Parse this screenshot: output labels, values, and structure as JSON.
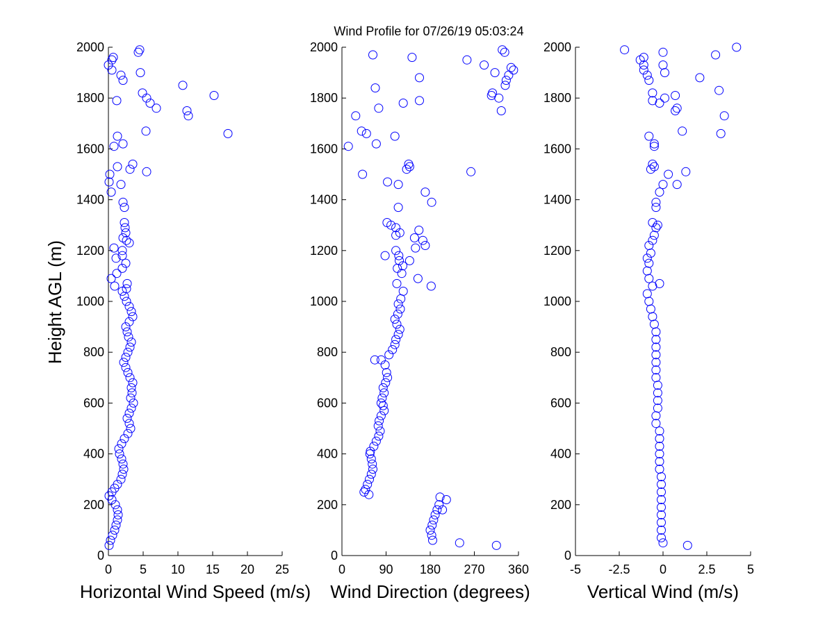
{
  "figure_title": "Wind Profile for  07/26/19 05:03:24",
  "chart_data": [
    {
      "type": "scatter",
      "xlabel": "Horizontal Wind Speed (m/s)",
      "ylabel": "Height AGL (m)",
      "xlim": [
        0,
        25
      ],
      "ylim": [
        0,
        2000
      ],
      "xticks": [
        "0",
        "5",
        "10",
        "15",
        "20",
        "25"
      ],
      "yticks": [
        "0",
        "200",
        "400",
        "600",
        "800",
        "1000",
        "1200",
        "1400",
        "1600",
        "1800",
        "2000"
      ],
      "marker": "open-circle",
      "color": "#0000ff",
      "points": [
        [
          0.1,
          40
        ],
        [
          0.3,
          60
        ],
        [
          0.6,
          80
        ],
        [
          0.9,
          100
        ],
        [
          1.1,
          120
        ],
        [
          1.3,
          140
        ],
        [
          1.4,
          160
        ],
        [
          1.3,
          180
        ],
        [
          1.0,
          200
        ],
        [
          0.5,
          220
        ],
        [
          0.1,
          235
        ],
        [
          0.5,
          250
        ],
        [
          0.9,
          265
        ],
        [
          1.3,
          280
        ],
        [
          1.8,
          300
        ],
        [
          2.0,
          320
        ],
        [
          2.2,
          340
        ],
        [
          2.1,
          360
        ],
        [
          1.9,
          380
        ],
        [
          1.6,
          400
        ],
        [
          1.5,
          420
        ],
        [
          1.9,
          440
        ],
        [
          2.3,
          460
        ],
        [
          2.8,
          480
        ],
        [
          3.2,
          500
        ],
        [
          3.0,
          520
        ],
        [
          2.7,
          540
        ],
        [
          3.0,
          560
        ],
        [
          3.3,
          580
        ],
        [
          3.6,
          600
        ],
        [
          3.2,
          620
        ],
        [
          3.4,
          640
        ],
        [
          3.3,
          660
        ],
        [
          3.5,
          680
        ],
        [
          3.1,
          700
        ],
        [
          2.8,
          720
        ],
        [
          2.5,
          740
        ],
        [
          2.2,
          760
        ],
        [
          2.5,
          780
        ],
        [
          2.8,
          800
        ],
        [
          3.1,
          820
        ],
        [
          3.3,
          840
        ],
        [
          2.9,
          860
        ],
        [
          2.7,
          880
        ],
        [
          2.5,
          900
        ],
        [
          3.0,
          920
        ],
        [
          3.5,
          940
        ],
        [
          3.3,
          960
        ],
        [
          3.0,
          980
        ],
        [
          2.6,
          1000
        ],
        [
          2.3,
          1020
        ],
        [
          2.0,
          1040
        ],
        [
          2.6,
          1050
        ],
        [
          2.7,
          1070
        ],
        [
          0.9,
          1060
        ],
        [
          0.4,
          1090
        ],
        [
          1.2,
          1110
        ],
        [
          2.0,
          1130
        ],
        [
          2.5,
          1150
        ],
        [
          1.1,
          1170
        ],
        [
          2.0,
          1180
        ],
        [
          0.8,
          1210
        ],
        [
          2.0,
          1200
        ],
        [
          2.1,
          1250
        ],
        [
          2.6,
          1240
        ],
        [
          3.0,
          1230
        ],
        [
          2.5,
          1270
        ],
        [
          2.4,
          1290
        ],
        [
          2.3,
          1310
        ],
        [
          2.3,
          1370
        ],
        [
          2.1,
          1390
        ],
        [
          0.4,
          1430
        ],
        [
          1.8,
          1460
        ],
        [
          0.1,
          1470
        ],
        [
          0.2,
          1500
        ],
        [
          5.5,
          1510
        ],
        [
          3.1,
          1520
        ],
        [
          1.3,
          1530
        ],
        [
          3.5,
          1540
        ],
        [
          0.8,
          1610
        ],
        [
          2.1,
          1620
        ],
        [
          1.3,
          1650
        ],
        [
          5.4,
          1670
        ],
        [
          17.2,
          1660
        ],
        [
          11.5,
          1730
        ],
        [
          11.3,
          1750
        ],
        [
          6.9,
          1760
        ],
        [
          6.0,
          1780
        ],
        [
          5.5,
          1800
        ],
        [
          15.2,
          1810
        ],
        [
          4.9,
          1820
        ],
        [
          10.7,
          1850
        ],
        [
          1.2,
          1790
        ],
        [
          2.1,
          1870
        ],
        [
          1.8,
          1890
        ],
        [
          4.6,
          1900
        ],
        [
          0.5,
          1910
        ],
        [
          0.0,
          1930
        ],
        [
          0.5,
          1950
        ],
        [
          0.7,
          1960
        ],
        [
          4.3,
          1980
        ],
        [
          4.5,
          1990
        ]
      ]
    },
    {
      "type": "scatter",
      "xlabel": "Wind Direction (degrees)",
      "xlim": [
        0,
        360
      ],
      "ylim": [
        0,
        2000
      ],
      "xticks": [
        "0",
        "90",
        "180",
        "270",
        "360"
      ],
      "yticks": [
        "0",
        "200",
        "400",
        "600",
        "800",
        "1000",
        "1200",
        "1400",
        "1600",
        "1800",
        "2000"
      ],
      "marker": "open-circle",
      "color": "#0000ff",
      "points": [
        [
          315,
          40
        ],
        [
          240,
          50
        ],
        [
          185,
          60
        ],
        [
          183,
          80
        ],
        [
          180,
          100
        ],
        [
          184,
          120
        ],
        [
          187,
          140
        ],
        [
          190,
          160
        ],
        [
          194,
          180
        ],
        [
          198,
          200
        ],
        [
          205,
          180
        ],
        [
          213,
          220
        ],
        [
          200,
          230
        ],
        [
          55,
          240
        ],
        [
          48,
          260
        ],
        [
          45,
          250
        ],
        [
          52,
          280
        ],
        [
          56,
          300
        ],
        [
          60,
          320
        ],
        [
          63,
          340
        ],
        [
          62,
          360
        ],
        [
          60,
          380
        ],
        [
          57,
          400
        ],
        [
          58,
          410
        ],
        [
          65,
          430
        ],
        [
          70,
          450
        ],
        [
          75,
          470
        ],
        [
          78,
          490
        ],
        [
          74,
          510
        ],
        [
          76,
          530
        ],
        [
          80,
          550
        ],
        [
          86,
          570
        ],
        [
          84,
          590
        ],
        [
          80,
          600
        ],
        [
          82,
          620
        ],
        [
          86,
          640
        ],
        [
          84,
          660
        ],
        [
          89,
          680
        ],
        [
          93,
          700
        ],
        [
          91,
          720
        ],
        [
          88,
          750
        ],
        [
          67,
          770
        ],
        [
          80,
          770
        ],
        [
          96,
          790
        ],
        [
          103,
          810
        ],
        [
          108,
          830
        ],
        [
          110,
          850
        ],
        [
          115,
          870
        ],
        [
          118,
          890
        ],
        [
          112,
          910
        ],
        [
          108,
          930
        ],
        [
          114,
          950
        ],
        [
          119,
          970
        ],
        [
          115,
          990
        ],
        [
          120,
          1010
        ],
        [
          125,
          1040
        ],
        [
          112,
          1070
        ],
        [
          182,
          1060
        ],
        [
          155,
          1090
        ],
        [
          122,
          1110
        ],
        [
          113,
          1130
        ],
        [
          124,
          1140
        ],
        [
          117,
          1160
        ],
        [
          138,
          1160
        ],
        [
          116,
          1180
        ],
        [
          88,
          1180
        ],
        [
          110,
          1200
        ],
        [
          150,
          1210
        ],
        [
          170,
          1220
        ],
        [
          165,
          1240
        ],
        [
          148,
          1250
        ],
        [
          110,
          1260
        ],
        [
          118,
          1270
        ],
        [
          157,
          1280
        ],
        [
          110,
          1290
        ],
        [
          100,
          1300
        ],
        [
          92,
          1310
        ],
        [
          115,
          1370
        ],
        [
          183,
          1390
        ],
        [
          170,
          1430
        ],
        [
          115,
          1460
        ],
        [
          93,
          1470
        ],
        [
          42,
          1500
        ],
        [
          263,
          1510
        ],
        [
          132,
          1520
        ],
        [
          138,
          1530
        ],
        [
          136,
          1540
        ],
        [
          13,
          1610
        ],
        [
          70,
          1620
        ],
        [
          108,
          1650
        ],
        [
          50,
          1660
        ],
        [
          40,
          1670
        ],
        [
          28,
          1730
        ],
        [
          325,
          1750
        ],
        [
          75,
          1760
        ],
        [
          125,
          1780
        ],
        [
          158,
          1790
        ],
        [
          305,
          1810
        ],
        [
          307,
          1820
        ],
        [
          320,
          1800
        ],
        [
          333,
          1850
        ],
        [
          335,
          1870
        ],
        [
          68,
          1840
        ],
        [
          158,
          1880
        ],
        [
          340,
          1890
        ],
        [
          312,
          1900
        ],
        [
          350,
          1910
        ],
        [
          345,
          1920
        ],
        [
          290,
          1930
        ],
        [
          255,
          1950
        ],
        [
          143,
          1960
        ],
        [
          63,
          1970
        ],
        [
          332,
          1980
        ],
        [
          327,
          1990
        ]
      ]
    },
    {
      "type": "scatter",
      "xlabel": "Vertical Wind (m/s)",
      "xlim": [
        -5,
        5
      ],
      "ylim": [
        0,
        2000
      ],
      "xticks": [
        "-5",
        "-2.5",
        "0",
        "2.5",
        "5"
      ],
      "yticks": [
        "0",
        "200",
        "400",
        "600",
        "800",
        "1000",
        "1200",
        "1400",
        "1600",
        "1800",
        "2000"
      ],
      "marker": "open-circle",
      "color": "#0000ff",
      "points": [
        [
          1.4,
          40
        ],
        [
          0.0,
          50
        ],
        [
          -0.1,
          70
        ],
        [
          -0.1,
          100
        ],
        [
          -0.1,
          130
        ],
        [
          -0.1,
          160
        ],
        [
          -0.1,
          190
        ],
        [
          -0.1,
          220
        ],
        [
          -0.1,
          250
        ],
        [
          -0.1,
          280
        ],
        [
          -0.1,
          310
        ],
        [
          -0.2,
          340
        ],
        [
          -0.2,
          370
        ],
        [
          -0.2,
          400
        ],
        [
          -0.2,
          430
        ],
        [
          -0.2,
          460
        ],
        [
          -0.2,
          490
        ],
        [
          -0.4,
          520
        ],
        [
          -0.4,
          550
        ],
        [
          -0.3,
          580
        ],
        [
          -0.3,
          610
        ],
        [
          -0.3,
          640
        ],
        [
          -0.3,
          670
        ],
        [
          -0.4,
          700
        ],
        [
          -0.4,
          730
        ],
        [
          -0.4,
          760
        ],
        [
          -0.4,
          790
        ],
        [
          -0.4,
          820
        ],
        [
          -0.4,
          850
        ],
        [
          -0.4,
          880
        ],
        [
          -0.5,
          910
        ],
        [
          -0.6,
          940
        ],
        [
          -0.7,
          970
        ],
        [
          -0.8,
          1000
        ],
        [
          -0.9,
          1030
        ],
        [
          -0.6,
          1060
        ],
        [
          -0.2,
          1070
        ],
        [
          -0.8,
          1090
        ],
        [
          -0.9,
          1120
        ],
        [
          -0.8,
          1150
        ],
        [
          -0.9,
          1170
        ],
        [
          -0.7,
          1190
        ],
        [
          -0.8,
          1220
        ],
        [
          -0.6,
          1240
        ],
        [
          -0.5,
          1260
        ],
        [
          -0.4,
          1290
        ],
        [
          -0.3,
          1300
        ],
        [
          -0.6,
          1310
        ],
        [
          -0.4,
          1370
        ],
        [
          -0.4,
          1390
        ],
        [
          -0.2,
          1430
        ],
        [
          0.0,
          1460
        ],
        [
          0.3,
          1500
        ],
        [
          0.8,
          1460
        ],
        [
          1.3,
          1510
        ],
        [
          -0.7,
          1520
        ],
        [
          -0.5,
          1530
        ],
        [
          -0.6,
          1540
        ],
        [
          -0.5,
          1610
        ],
        [
          -0.5,
          1620
        ],
        [
          -0.8,
          1650
        ],
        [
          3.3,
          1660
        ],
        [
          1.1,
          1670
        ],
        [
          3.5,
          1730
        ],
        [
          0.7,
          1750
        ],
        [
          0.8,
          1760
        ],
        [
          -0.2,
          1780
        ],
        [
          -0.6,
          1790
        ],
        [
          0.1,
          1800
        ],
        [
          0.7,
          1810
        ],
        [
          -0.6,
          1820
        ],
        [
          3.2,
          1830
        ],
        [
          -0.8,
          1870
        ],
        [
          2.1,
          1880
        ],
        [
          -0.9,
          1890
        ],
        [
          0.1,
          1900
        ],
        [
          -1.1,
          1910
        ],
        [
          -1.1,
          1930
        ],
        [
          0.0,
          1930
        ],
        [
          -1.3,
          1950
        ],
        [
          -1.1,
          1960
        ],
        [
          3.0,
          1970
        ],
        [
          0.0,
          1980
        ],
        [
          -2.2,
          1990
        ],
        [
          4.2,
          2000
        ]
      ]
    }
  ]
}
